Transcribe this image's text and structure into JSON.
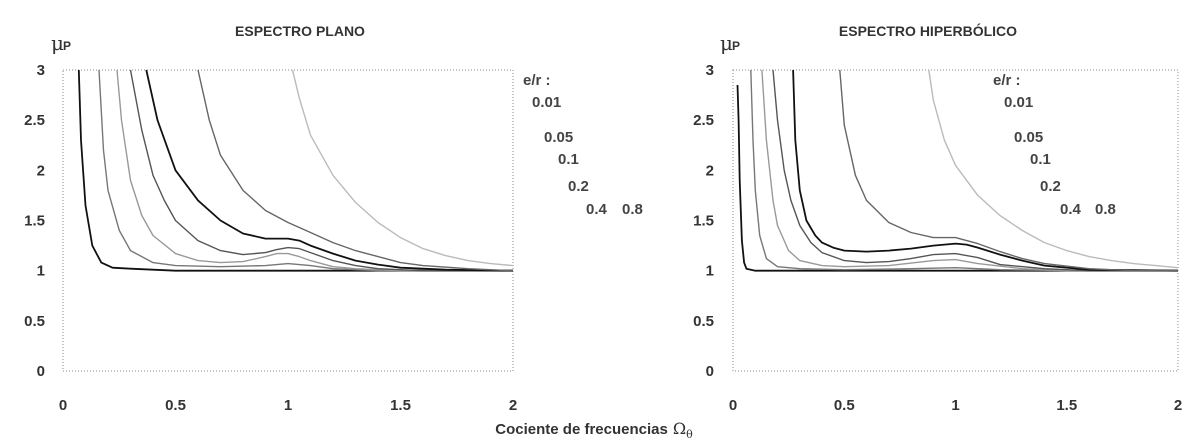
{
  "xlabel": {
    "text": "Cociente de frecuencias",
    "symbol": "Ω",
    "subscript": "θ"
  },
  "chart_data": [
    {
      "type": "line",
      "title": "ESPECTRO PLANO",
      "ylabel_symbol": "μ",
      "ylabel_subscript": "P",
      "xlim": [
        0,
        2
      ],
      "ylim": [
        0,
        3
      ],
      "x_ticks": [
        "0",
        "0.5",
        "1",
        "1.5",
        "2"
      ],
      "y_ticks": [
        "0",
        "0.5",
        "1",
        "1.5",
        "2",
        "2.5",
        "3"
      ],
      "annotations": [
        "e/r :",
        "0.01",
        "0.05",
        "0.1",
        "0.2",
        "0.4",
        "0.8"
      ],
      "series": [
        {
          "label": "0.01",
          "color": "#111111",
          "x": [
            0.07,
            0.08,
            0.1,
            0.13,
            0.17,
            0.22,
            0.3,
            0.5,
            1.0,
            1.5,
            2.0
          ],
          "y": [
            3.0,
            2.3,
            1.65,
            1.25,
            1.08,
            1.03,
            1.02,
            1.0,
            1.0,
            1.0,
            1.0
          ]
        },
        {
          "label": "0.05",
          "color": "#777777",
          "x": [
            0.16,
            0.18,
            0.2,
            0.25,
            0.3,
            0.4,
            0.5,
            0.7,
            0.9,
            1.0,
            1.1,
            1.2,
            1.4,
            1.6,
            2.0
          ],
          "y": [
            3.0,
            2.2,
            1.8,
            1.4,
            1.2,
            1.08,
            1.05,
            1.04,
            1.05,
            1.07,
            1.05,
            1.02,
            1.0,
            1.0,
            1.0
          ]
        },
        {
          "label": "0.1",
          "color": "#999999",
          "x": [
            0.24,
            0.26,
            0.3,
            0.35,
            0.4,
            0.5,
            0.6,
            0.7,
            0.8,
            0.9,
            0.95,
            1.0,
            1.05,
            1.1,
            1.2,
            1.3,
            1.5,
            2.0
          ],
          "y": [
            3.0,
            2.5,
            1.9,
            1.55,
            1.35,
            1.17,
            1.1,
            1.08,
            1.09,
            1.14,
            1.17,
            1.17,
            1.14,
            1.1,
            1.04,
            1.02,
            1.0,
            1.0
          ]
        },
        {
          "label": "0.2",
          "color": "#555555",
          "x": [
            0.3,
            0.35,
            0.4,
            0.45,
            0.5,
            0.6,
            0.7,
            0.8,
            0.9,
            0.95,
            1.0,
            1.05,
            1.1,
            1.2,
            1.3,
            1.4,
            1.6,
            2.0
          ],
          "y": [
            3.0,
            2.4,
            1.95,
            1.7,
            1.5,
            1.3,
            1.2,
            1.16,
            1.18,
            1.21,
            1.23,
            1.22,
            1.18,
            1.1,
            1.05,
            1.02,
            1.0,
            1.0
          ]
        },
        {
          "label": "0.4",
          "color": "#111111",
          "x": [
            0.37,
            0.42,
            0.5,
            0.6,
            0.7,
            0.8,
            0.9,
            1.0,
            1.05,
            1.1,
            1.2,
            1.3,
            1.4,
            1.5,
            1.7,
            2.0
          ],
          "y": [
            3.0,
            2.5,
            2.0,
            1.7,
            1.5,
            1.37,
            1.32,
            1.32,
            1.3,
            1.25,
            1.17,
            1.1,
            1.06,
            1.03,
            1.01,
            1.0
          ]
        },
        {
          "label": "0.8",
          "color": "#666666",
          "x": [
            0.6,
            0.65,
            0.7,
            0.8,
            0.9,
            1.0,
            1.1,
            1.2,
            1.3,
            1.4,
            1.5,
            1.6,
            1.8,
            2.0
          ],
          "y": [
            3.0,
            2.5,
            2.15,
            1.8,
            1.6,
            1.48,
            1.38,
            1.28,
            1.2,
            1.14,
            1.08,
            1.05,
            1.02,
            1.0
          ]
        },
        {
          "label": "",
          "color": "#bbbbbb",
          "x": [
            1.02,
            1.05,
            1.1,
            1.2,
            1.3,
            1.4,
            1.5,
            1.6,
            1.7,
            1.8,
            1.9,
            2.0
          ],
          "y": [
            3.0,
            2.72,
            2.35,
            1.95,
            1.68,
            1.48,
            1.33,
            1.22,
            1.15,
            1.1,
            1.07,
            1.05
          ]
        }
      ]
    },
    {
      "type": "line",
      "title": "ESPECTRO HIPERBÓLICO",
      "ylabel_symbol": "μ",
      "ylabel_subscript": "P",
      "xlim": [
        0,
        2
      ],
      "ylim": [
        0,
        3
      ],
      "x_ticks": [
        "0",
        "0.5",
        "1",
        "1.5",
        "2"
      ],
      "y_ticks": [
        "0",
        "0.5",
        "1",
        "1.5",
        "2",
        "2.5",
        "3"
      ],
      "annotations": [
        "e/r :",
        "0.01",
        "0.05",
        "0.1",
        "0.2",
        "0.4",
        "0.8"
      ],
      "series": [
        {
          "label": "0.01",
          "color": "#111111",
          "x": [
            0.02,
            0.025,
            0.03,
            0.04,
            0.05,
            0.06,
            0.1,
            0.5,
            1.0,
            1.5,
            2.0
          ],
          "y": [
            2.85,
            2.5,
            1.9,
            1.3,
            1.08,
            1.02,
            1.0,
            1.0,
            1.0,
            1.0,
            1.0
          ]
        },
        {
          "label": "0.05",
          "color": "#777777",
          "x": [
            0.08,
            0.09,
            0.1,
            0.12,
            0.15,
            0.2,
            0.3,
            0.5,
            0.8,
            1.0,
            1.2,
            1.5,
            2.0
          ],
          "y": [
            3.0,
            2.3,
            1.8,
            1.35,
            1.12,
            1.04,
            1.02,
            1.01,
            1.02,
            1.03,
            1.01,
            1.0,
            1.0
          ]
        },
        {
          "label": "0.1",
          "color": "#999999",
          "x": [
            0.13,
            0.15,
            0.18,
            0.2,
            0.25,
            0.3,
            0.4,
            0.5,
            0.7,
            0.9,
            1.0,
            1.1,
            1.3,
            1.5,
            2.0
          ],
          "y": [
            3.0,
            2.3,
            1.7,
            1.45,
            1.2,
            1.1,
            1.05,
            1.04,
            1.05,
            1.1,
            1.11,
            1.07,
            1.02,
            1.0,
            1.0
          ]
        },
        {
          "label": "0.2",
          "color": "#555555",
          "x": [
            0.18,
            0.2,
            0.23,
            0.26,
            0.3,
            0.35,
            0.4,
            0.5,
            0.6,
            0.7,
            0.8,
            0.9,
            1.0,
            1.1,
            1.2,
            1.4,
            1.6,
            2.0
          ],
          "y": [
            3.0,
            2.5,
            2.0,
            1.7,
            1.45,
            1.28,
            1.18,
            1.1,
            1.08,
            1.09,
            1.12,
            1.16,
            1.17,
            1.13,
            1.06,
            1.02,
            1.0,
            1.0
          ]
        },
        {
          "label": "0.4",
          "color": "#111111",
          "x": [
            0.27,
            0.28,
            0.3,
            0.33,
            0.37,
            0.4,
            0.45,
            0.5,
            0.6,
            0.7,
            0.8,
            0.9,
            1.0,
            1.05,
            1.1,
            1.2,
            1.3,
            1.4,
            1.6,
            2.0
          ],
          "y": [
            3.0,
            2.3,
            1.8,
            1.5,
            1.35,
            1.28,
            1.23,
            1.2,
            1.19,
            1.2,
            1.22,
            1.25,
            1.27,
            1.26,
            1.23,
            1.16,
            1.1,
            1.05,
            1.01,
            1.0
          ]
        },
        {
          "label": "0.8",
          "color": "#666666",
          "x": [
            0.48,
            0.5,
            0.55,
            0.6,
            0.7,
            0.8,
            0.9,
            1.0,
            1.1,
            1.2,
            1.3,
            1.4,
            1.6,
            1.8,
            2.0
          ],
          "y": [
            3.0,
            2.45,
            1.95,
            1.7,
            1.48,
            1.38,
            1.33,
            1.33,
            1.27,
            1.19,
            1.12,
            1.07,
            1.02,
            1.0,
            1.0
          ]
        },
        {
          "label": "",
          "color": "#bbbbbb",
          "x": [
            0.88,
            0.9,
            0.95,
            1.0,
            1.1,
            1.2,
            1.3,
            1.4,
            1.5,
            1.6,
            1.7,
            1.8,
            1.9,
            2.0
          ],
          "y": [
            3.0,
            2.7,
            2.3,
            2.05,
            1.75,
            1.55,
            1.4,
            1.28,
            1.2,
            1.14,
            1.1,
            1.07,
            1.05,
            1.03
          ]
        }
      ]
    }
  ]
}
